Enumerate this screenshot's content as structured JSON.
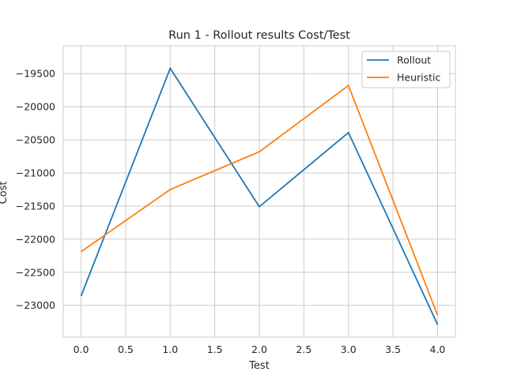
{
  "chart_data": {
    "type": "line",
    "title": "Run 1 - Rollout results Cost/Test",
    "xlabel": "Test",
    "ylabel": "Cost",
    "x": [
      0,
      1,
      2,
      3,
      4
    ],
    "xlim": [
      -0.2,
      4.2
    ],
    "ylim": [
      -23480,
      -19080
    ],
    "xticks": [
      0.0,
      0.5,
      1.0,
      1.5,
      2.0,
      2.5,
      3.0,
      3.5,
      4.0
    ],
    "xtick_labels": [
      "0.0",
      "0.5",
      "1.0",
      "1.5",
      "2.0",
      "2.5",
      "3.0",
      "3.5",
      "4.0"
    ],
    "yticks": [
      -19500,
      -20000,
      -20500,
      -21000,
      -21500,
      -22000,
      -22500,
      -23000
    ],
    "ytick_labels": [
      "−19500",
      "−20000",
      "−20500",
      "−21000",
      "−21500",
      "−22000",
      "−22500",
      "−23000"
    ],
    "grid": true,
    "legend_position": "top-right",
    "series": [
      {
        "name": "Rollout",
        "color": "#1f77b4",
        "values": [
          -22860,
          -19420,
          -21510,
          -20390,
          -23290
        ]
      },
      {
        "name": "Heuristic",
        "color": "#ff7f0e",
        "values": [
          -22190,
          -21250,
          -20680,
          -19680,
          -23150
        ]
      }
    ]
  }
}
